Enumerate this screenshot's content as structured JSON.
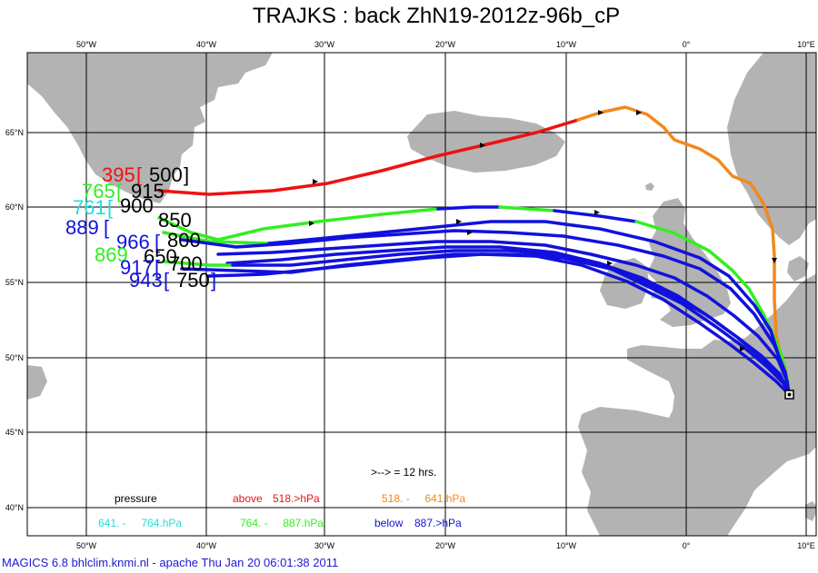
{
  "title": "TRAJKS : back ZhN19-2012z-96b_cP",
  "footer": "MAGICS 6.8 bhlclim.knmi.nl - apache Thu Jan 20 06:01:38 2011",
  "map": {
    "lon_labels": [
      "50°W",
      "40°W",
      "30°W",
      "20°W",
      "10°W",
      "0°",
      "10°E"
    ],
    "lat_labels": [
      "65°N",
      "60°N",
      "55°N",
      "50°N",
      "45°N",
      "40°N"
    ],
    "colors": {
      "land": "#b3b3b3",
      "sea": "#ffffff",
      "grid": "#000000",
      "red": "#ee1111",
      "orange": "#f2891c",
      "green": "#33ee22",
      "blue": "#1111dd",
      "cyan": "#22dddd"
    },
    "start_labels": [
      {
        "num": "395",
        "level": "500",
        "color": "red"
      },
      {
        "num": "765",
        "level": "915",
        "color": "green"
      },
      {
        "num": "761",
        "level": "900",
        "color": "cyan"
      },
      {
        "num": "889",
        "level": "850",
        "color": "blue"
      },
      {
        "num": "966",
        "level": "800",
        "color": "blue"
      },
      {
        "num": "869",
        "level": "650",
        "color": "green"
      },
      {
        "num": "917",
        "level": "700",
        "color": "blue"
      },
      {
        "num": "943",
        "level": "750",
        "color": "blue"
      }
    ]
  },
  "legend": {
    "arrow_note": ">--> = 12 hrs.",
    "pressure": "pressure",
    "above": "above",
    "above_val": "518.>hPa",
    "orange_range": "518. -     641.hPa",
    "cyan_range": "641. -     764.hPa",
    "green_range": "764. -     887.hPa",
    "below": "below",
    "below_val": "887.>hPa"
  }
}
